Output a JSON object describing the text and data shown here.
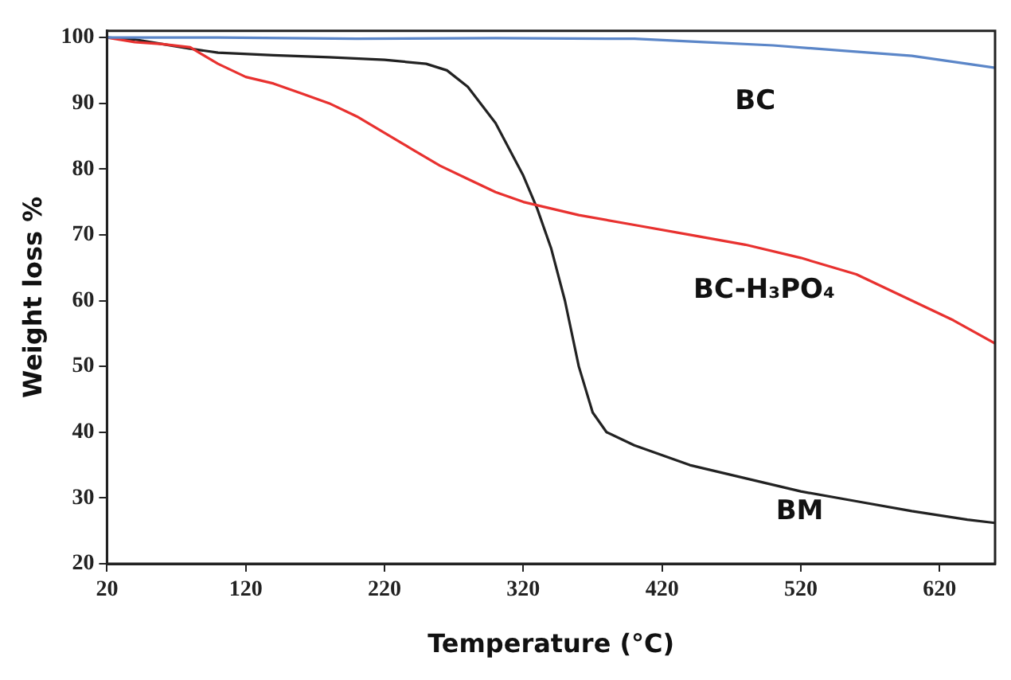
{
  "chart_data": {
    "type": "line",
    "xlabel": "Temperature (°C)",
    "ylabel": "Weight loss %",
    "xlim": [
      20,
      660
    ],
    "xticks": [
      20,
      120,
      220,
      320,
      420,
      520,
      620
    ],
    "ylim": [
      20,
      101
    ],
    "yticks": [
      20,
      30,
      40,
      50,
      60,
      70,
      80,
      90,
      100
    ],
    "grid": false,
    "legend": false,
    "marker": "none",
    "line_style": "solid",
    "series": [
      {
        "name": "BC",
        "color": "#5b86c8",
        "x": [
          20,
          100,
          200,
          300,
          400,
          450,
          500,
          550,
          600,
          630,
          660
        ],
        "values": [
          100,
          100,
          99.8,
          99.9,
          99.8,
          99.3,
          98.8,
          98,
          97.2,
          96.3,
          95.4
        ]
      },
      {
        "name": "BC-H₃PO₄",
        "color": "#e8312f",
        "x": [
          20,
          40,
          60,
          80,
          100,
          120,
          140,
          160,
          180,
          200,
          220,
          240,
          260,
          280,
          300,
          320,
          340,
          360,
          400,
          440,
          480,
          520,
          560,
          600,
          630,
          660
        ],
        "values": [
          100,
          99.3,
          99,
          98.5,
          96,
          94,
          93,
          91.5,
          90,
          88,
          85.5,
          83,
          80.5,
          78.5,
          76.5,
          75,
          74,
          73,
          71.5,
          70,
          68.5,
          66.5,
          64,
          60,
          57,
          53.5
        ]
      },
      {
        "name": "BM",
        "color": "#222222",
        "x": [
          20,
          40,
          60,
          80,
          100,
          140,
          180,
          220,
          250,
          265,
          280,
          300,
          320,
          330,
          340,
          350,
          360,
          370,
          380,
          400,
          440,
          480,
          520,
          560,
          600,
          640,
          660
        ],
        "values": [
          100,
          99.7,
          99,
          98.3,
          97.7,
          97.3,
          97,
          96.6,
          96,
          95,
          92.5,
          87,
          79,
          74,
          68,
          60,
          50,
          43,
          40,
          38,
          35,
          33,
          31,
          29.5,
          28,
          26.7,
          26.2
        ]
      }
    ]
  }
}
